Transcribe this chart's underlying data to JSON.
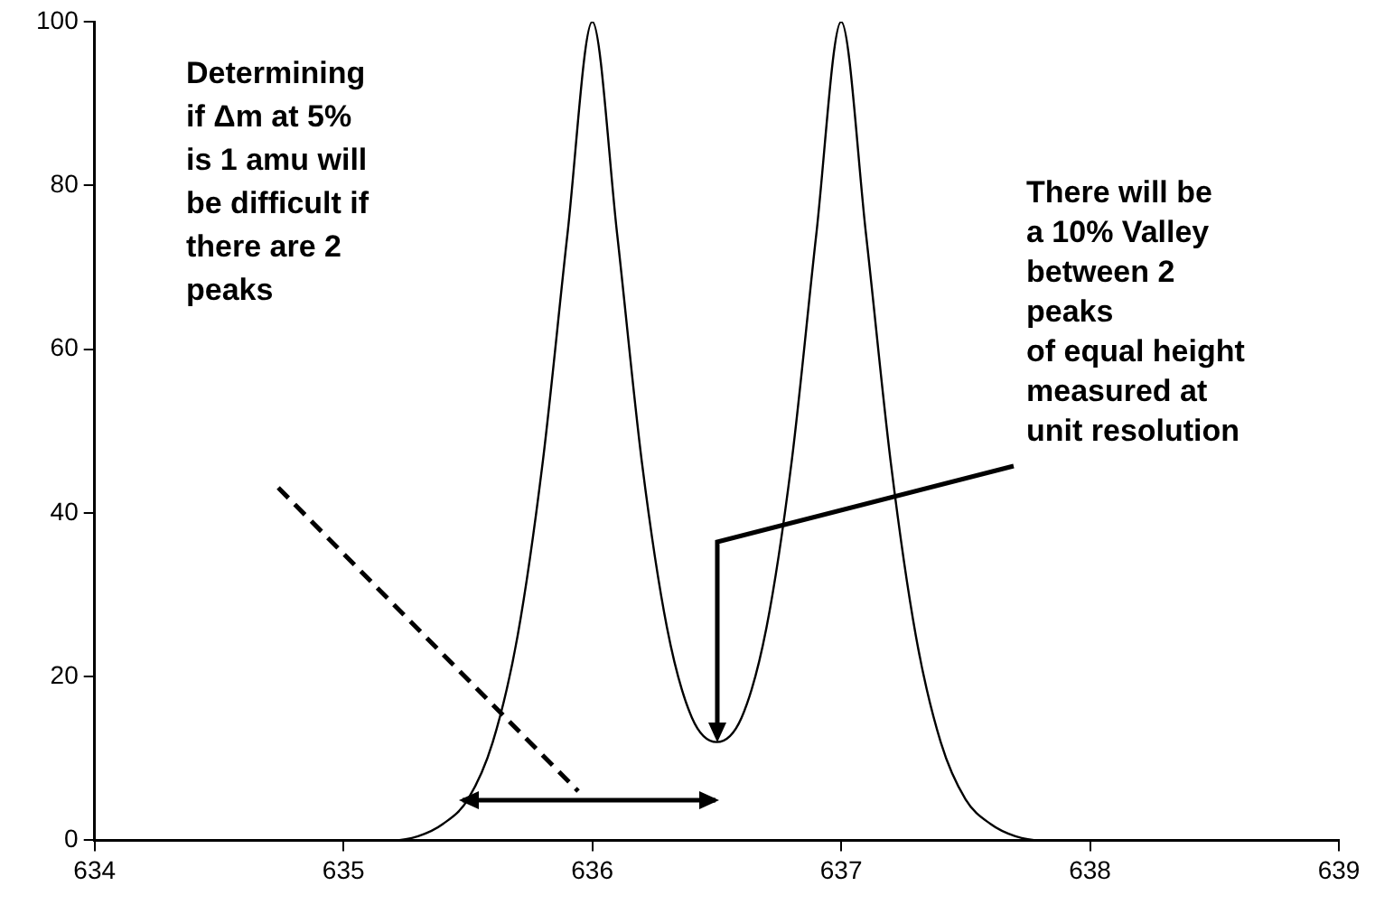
{
  "chart_data": {
    "type": "line",
    "x": [
      635.1,
      635.2,
      635.3,
      635.4,
      635.5,
      635.6,
      635.7,
      635.8,
      635.9,
      636.0,
      636.1,
      636.2,
      636.3,
      636.4,
      636.5,
      636.6,
      636.7,
      636.8,
      636.9,
      637.0,
      637.1,
      637.2,
      637.3,
      637.4,
      637.5,
      637.6,
      637.7,
      637.8,
      637.9
    ],
    "series": [
      {
        "color": "#000000",
        "values": [
          0,
          0,
          0.5,
          2,
          5,
          12,
          25,
          46,
          74,
          100,
          74,
          46,
          26,
          15,
          12,
          15,
          26,
          46,
          74,
          100,
          74,
          46,
          25,
          12,
          5,
          2,
          0.5,
          0,
          0
        ]
      }
    ],
    "xlim": [
      634,
      639
    ],
    "xticks": [
      634,
      635,
      636,
      637,
      638,
      639
    ],
    "ylim": [
      0,
      100
    ],
    "yticks": [
      0,
      20,
      40,
      60,
      80,
      100
    ],
    "grid": false,
    "legend": false,
    "marker": "none",
    "line_style": "solid",
    "annotations": [
      "Determining\nif Δm at 5%\nis 1 amu will\nbe difficult if\nthere are 2\npeaks",
      {
        "text": "There will be\na 10% Valley\nbetween 2\npeaks\nof equal height\nmeasured at\nunit resolution",
        "x": 636.5,
        "y": 12
      }
    ]
  }
}
